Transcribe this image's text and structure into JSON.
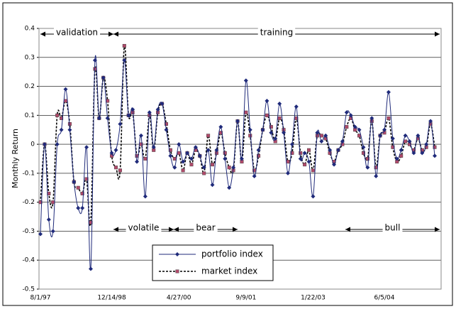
{
  "chart_data": {
    "type": "line",
    "y_label": "Monthly Return",
    "categories": [
      "8/1/97",
      null,
      null,
      null,
      null,
      null,
      null,
      null,
      null,
      null,
      null,
      null,
      null,
      null,
      null,
      null,
      null,
      "12/14/98",
      null,
      null,
      null,
      null,
      null,
      null,
      null,
      null,
      null,
      null,
      null,
      null,
      null,
      null,
      null,
      "4/27/00",
      null,
      null,
      null,
      null,
      null,
      null,
      null,
      null,
      null,
      null,
      null,
      null,
      null,
      null,
      null,
      "9/9/01",
      null,
      null,
      null,
      null,
      null,
      null,
      null,
      null,
      null,
      null,
      null,
      null,
      null,
      null,
      null,
      "1/22/03",
      null,
      null,
      null,
      null,
      null,
      null,
      null,
      null,
      null,
      null,
      null,
      null,
      null,
      null,
      null,
      null,
      "6/5/04",
      null,
      null,
      null,
      null,
      null,
      null,
      null,
      null,
      null,
      null,
      null,
      null
    ],
    "series": [
      {
        "name": "portfolio index",
        "color": "#1f2a7a",
        "marker": "diamond",
        "dash": false,
        "values": [
          -0.31,
          0.0,
          -0.26,
          -0.3,
          0.0,
          0.05,
          0.19,
          0.05,
          -0.13,
          -0.22,
          -0.22,
          -0.01,
          -0.43,
          0.29,
          0.09,
          0.23,
          0.09,
          -0.03,
          -0.02,
          0.07,
          0.29,
          0.1,
          0.12,
          -0.06,
          0.03,
          -0.18,
          0.11,
          -0.01,
          0.12,
          0.14,
          0.05,
          -0.04,
          -0.08,
          0.0,
          -0.06,
          -0.03,
          -0.05,
          -0.01,
          -0.04,
          -0.08,
          -0.02,
          -0.14,
          -0.02,
          0.06,
          -0.05,
          -0.15,
          -0.08,
          0.08,
          -0.05,
          0.22,
          0.05,
          -0.11,
          -0.02,
          0.05,
          0.15,
          0.04,
          0.02,
          0.14,
          0.04,
          -0.1,
          0.0,
          0.13,
          -0.05,
          -0.03,
          -0.06,
          -0.18,
          0.04,
          0.01,
          0.03,
          -0.02,
          -0.07,
          -0.02,
          0.01,
          0.11,
          0.1,
          0.06,
          0.05,
          -0.01,
          -0.08,
          0.09,
          -0.11,
          0.03,
          0.05,
          0.18,
          0.02,
          -0.05,
          -0.02,
          0.03,
          0.01,
          -0.03,
          0.03,
          -0.03,
          0.0,
          0.08,
          -0.04
        ]
      },
      {
        "name": "market index",
        "color": "#b04a6a",
        "marker": "square",
        "dash": true,
        "values": [
          -0.2,
          0.0,
          -0.17,
          -0.2,
          0.1,
          0.09,
          0.15,
          0.07,
          -0.13,
          -0.15,
          -0.17,
          -0.12,
          -0.27,
          0.26,
          0.09,
          0.23,
          0.15,
          -0.04,
          -0.08,
          -0.09,
          0.34,
          0.1,
          0.11,
          -0.04,
          0.0,
          -0.05,
          0.1,
          -0.02,
          0.11,
          0.14,
          0.07,
          -0.02,
          -0.05,
          -0.03,
          -0.09,
          -0.03,
          -0.07,
          -0.02,
          -0.04,
          -0.1,
          0.03,
          -0.07,
          -0.03,
          0.04,
          -0.03,
          -0.08,
          -0.09,
          0.08,
          -0.06,
          0.11,
          0.03,
          -0.09,
          -0.04,
          0.05,
          0.1,
          0.06,
          0.01,
          0.09,
          0.05,
          -0.06,
          -0.03,
          0.09,
          -0.03,
          -0.07,
          -0.02,
          -0.09,
          0.03,
          0.03,
          0.02,
          -0.03,
          -0.06,
          -0.02,
          0.0,
          0.06,
          0.09,
          0.05,
          0.03,
          -0.03,
          -0.05,
          0.08,
          -0.08,
          0.03,
          0.04,
          0.09,
          -0.01,
          -0.06,
          -0.04,
          0.01,
          0.0,
          -0.02,
          0.02,
          -0.02,
          -0.01,
          0.07,
          -0.01
        ]
      }
    ],
    "ylim": [
      -0.5,
      0.4
    ],
    "yticks": [
      -0.5,
      -0.4,
      -0.3,
      -0.2,
      -0.1,
      0,
      0.1,
      0.2,
      0.3,
      0.4
    ],
    "grid": true,
    "legend": "bottom-center",
    "annotations": [
      "validation",
      "training",
      "volatile",
      "bear",
      "bull"
    ]
  }
}
